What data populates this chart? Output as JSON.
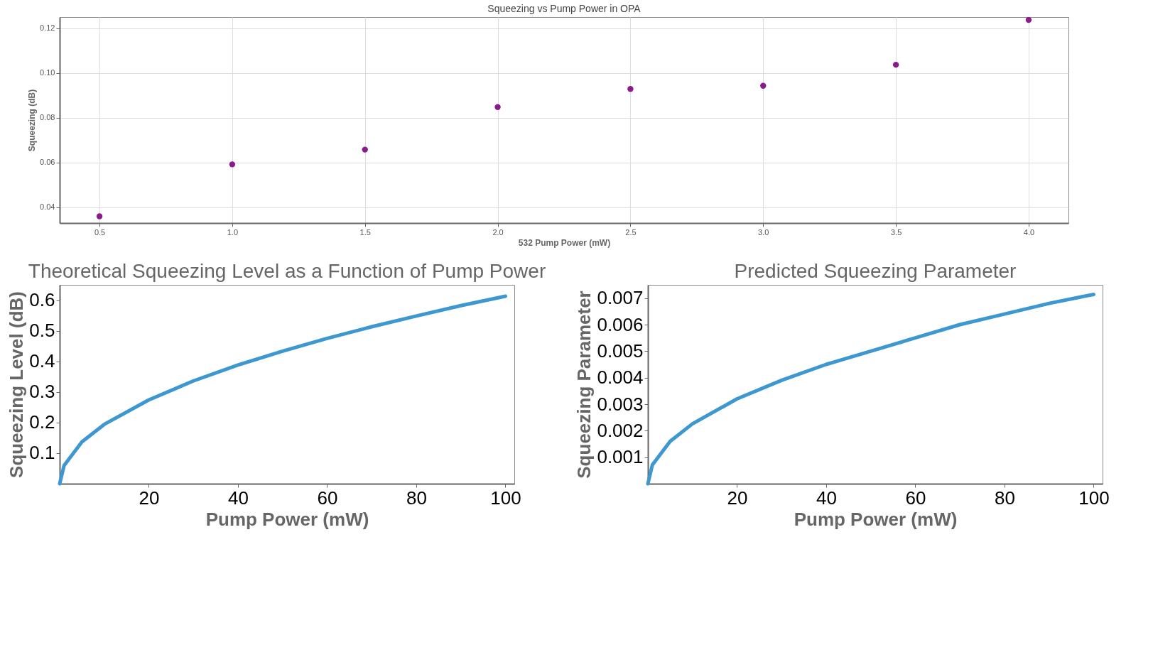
{
  "chart_data": [
    {
      "type": "scatter",
      "title": "Squeezing vs Pump Power in OPA",
      "xlabel": "532 Pump Power (mW)",
      "ylabel": "Squeezing (dB)",
      "x": [
        0.5,
        1.0,
        1.5,
        2.0,
        2.5,
        3.0,
        3.5,
        4.0
      ],
      "series": [
        {
          "color": "#8b1a8b",
          "values": [
            0.036,
            0.0592,
            0.0658,
            0.0848,
            0.0929,
            0.0943,
            0.1037,
            0.1237
          ]
        }
      ],
      "xlim": [
        0.35,
        4.15
      ],
      "xticks": [
        {
          "value": 0.5,
          "label": "0.5"
        },
        {
          "value": 1.0,
          "label": "1.0"
        },
        {
          "value": 1.5,
          "label": "1.5"
        },
        {
          "value": 2.0,
          "label": "2.0"
        },
        {
          "value": 2.5,
          "label": "2.5"
        },
        {
          "value": 3.0,
          "label": "3.0"
        },
        {
          "value": 3.5,
          "label": "3.5"
        },
        {
          "value": 4.0,
          "label": "4.0"
        }
      ],
      "ylim": [
        0.033,
        0.125
      ],
      "yticks": [
        0.04,
        0.06,
        0.08,
        {
          "value": 0.1,
          "label": "0.10"
        },
        0.12
      ],
      "grid": true,
      "marker": "circle"
    },
    {
      "type": "line",
      "title": "Theoretical Squeezing Level as a Function of Pump Power",
      "xlabel": "Pump Power (mW)",
      "ylabel": "Squeezing Level (dB)",
      "x": [
        0,
        1,
        5,
        10,
        20,
        30,
        40,
        50,
        60,
        70,
        80,
        90,
        100
      ],
      "series": [
        {
          "color": "#3d97d0",
          "values": [
            0,
            0.06,
            0.137,
            0.194,
            0.274,
            0.336,
            0.388,
            0.433,
            0.475,
            0.513,
            0.548,
            0.582,
            0.613
          ]
        }
      ],
      "xlim": [
        0,
        102
      ],
      "xticks": [
        20,
        40,
        60,
        80,
        100
      ],
      "ylim": [
        0,
        0.65
      ],
      "yticks": [
        0.1,
        0.2,
        0.3,
        0.4,
        0.5,
        0.6
      ],
      "grid": false,
      "marker": "none",
      "line_style": "solid"
    },
    {
      "type": "line",
      "title": "Predicted Squeezing Parameter",
      "xlabel": "Pump Power (mW)",
      "ylabel": "Squeezing Parameter",
      "x": [
        0,
        1,
        5,
        10,
        20,
        30,
        40,
        50,
        60,
        70,
        80,
        90,
        100
      ],
      "series": [
        {
          "color": "#3d97d0",
          "values": [
            0,
            0.00071,
            0.0016,
            0.00226,
            0.0032,
            0.0039,
            0.0045,
            0.005,
            0.0055,
            0.006,
            0.0064,
            0.0068,
            0.00714
          ]
        }
      ],
      "xlim": [
        0,
        102
      ],
      "xticks": [
        20,
        40,
        60,
        80,
        100
      ],
      "ylim": [
        0,
        0.0075
      ],
      "yticks": [
        0.001,
        0.002,
        0.003,
        0.004,
        0.005,
        0.006,
        0.007
      ],
      "grid": false,
      "marker": "none",
      "line_style": "solid"
    }
  ]
}
